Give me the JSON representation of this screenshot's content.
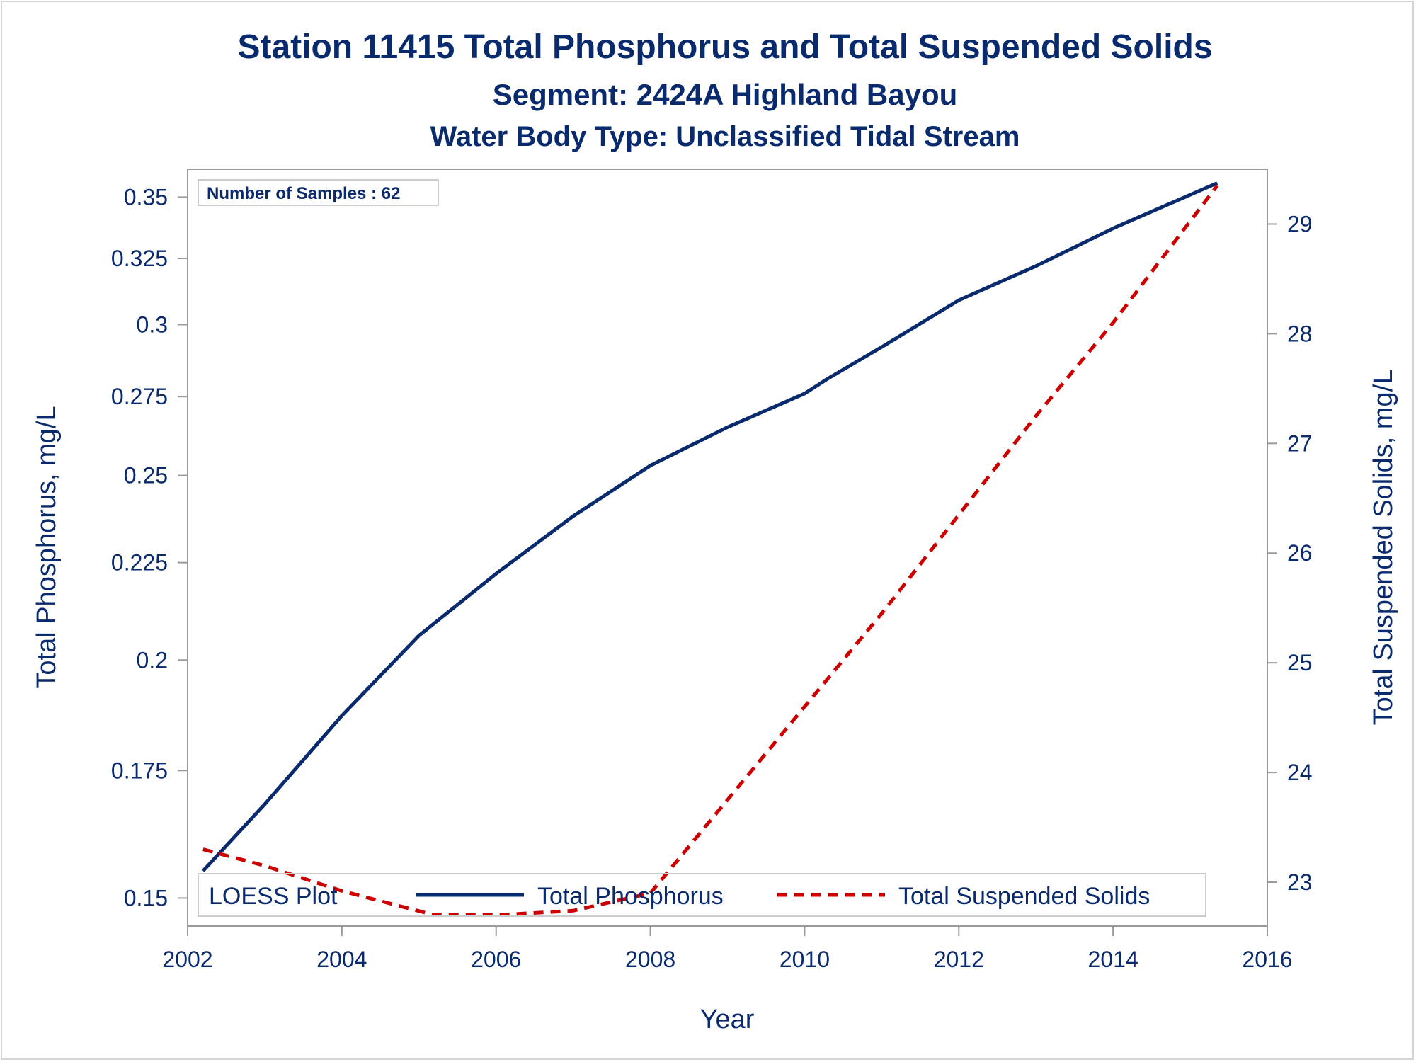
{
  "chart_data": {
    "type": "line",
    "title": "Station 11415  Total Phosphorus and Total Suspended Solids",
    "subtitle1": "Segment: 2424A  Highland Bayou",
    "subtitle2": "Water Body Type: Unclassified Tidal Stream",
    "xlabel": "Year",
    "ylabel_left": "Total Phosphorus, mg/L",
    "ylabel_right": "Total Suspended Solids, mg/L",
    "xlim": [
      2002,
      2016
    ],
    "ylim_left": [
      0.145,
      0.362
    ],
    "ylim_right": [
      22.6,
      29.5
    ],
    "y_left_scale": "log",
    "xticks": [
      "2002",
      "2004",
      "2006",
      "2008",
      "2010",
      "2012",
      "2014",
      "2016"
    ],
    "yticks_left": [
      "0.15",
      "0.175",
      "0.2",
      "0.225",
      "0.25",
      "0.275",
      "0.3",
      "0.325",
      "0.35"
    ],
    "yticks_right": [
      "23",
      "24",
      "25",
      "26",
      "27",
      "28",
      "29"
    ],
    "annotation": "Number of Samples : 62",
    "legend": {
      "title": "LOESS Plot",
      "placement": "bottom-inside",
      "entries": [
        "Total Phosphorus",
        "Total Suspended Solids"
      ]
    },
    "series": [
      {
        "name": "Total Phosphorus",
        "axis": "left",
        "color": "#0a2a6e",
        "style": "solid",
        "x": [
          2002.2,
          2003,
          2004,
          2005,
          2006,
          2007,
          2008,
          2009,
          2010,
          2010.3,
          2011,
          2012,
          2013,
          2014,
          2015.35
        ],
        "y": [
          0.155,
          0.168,
          0.187,
          0.206,
          0.222,
          0.238,
          0.253,
          0.265,
          0.276,
          0.281,
          0.292,
          0.309,
          0.322,
          0.337,
          0.356
        ]
      },
      {
        "name": "Total Suspended Solids",
        "axis": "right",
        "color": "#cc0000",
        "style": "dashed",
        "x": [
          2002.2,
          2003,
          2004,
          2005.2,
          2006,
          2007,
          2008,
          2009,
          2010,
          2011,
          2012,
          2013,
          2014,
          2015.35
        ],
        "y": [
          23.3,
          23.15,
          22.92,
          22.7,
          22.7,
          22.74,
          22.9,
          23.75,
          24.6,
          25.45,
          26.35,
          27.25,
          28.1,
          29.35
        ]
      }
    ]
  }
}
